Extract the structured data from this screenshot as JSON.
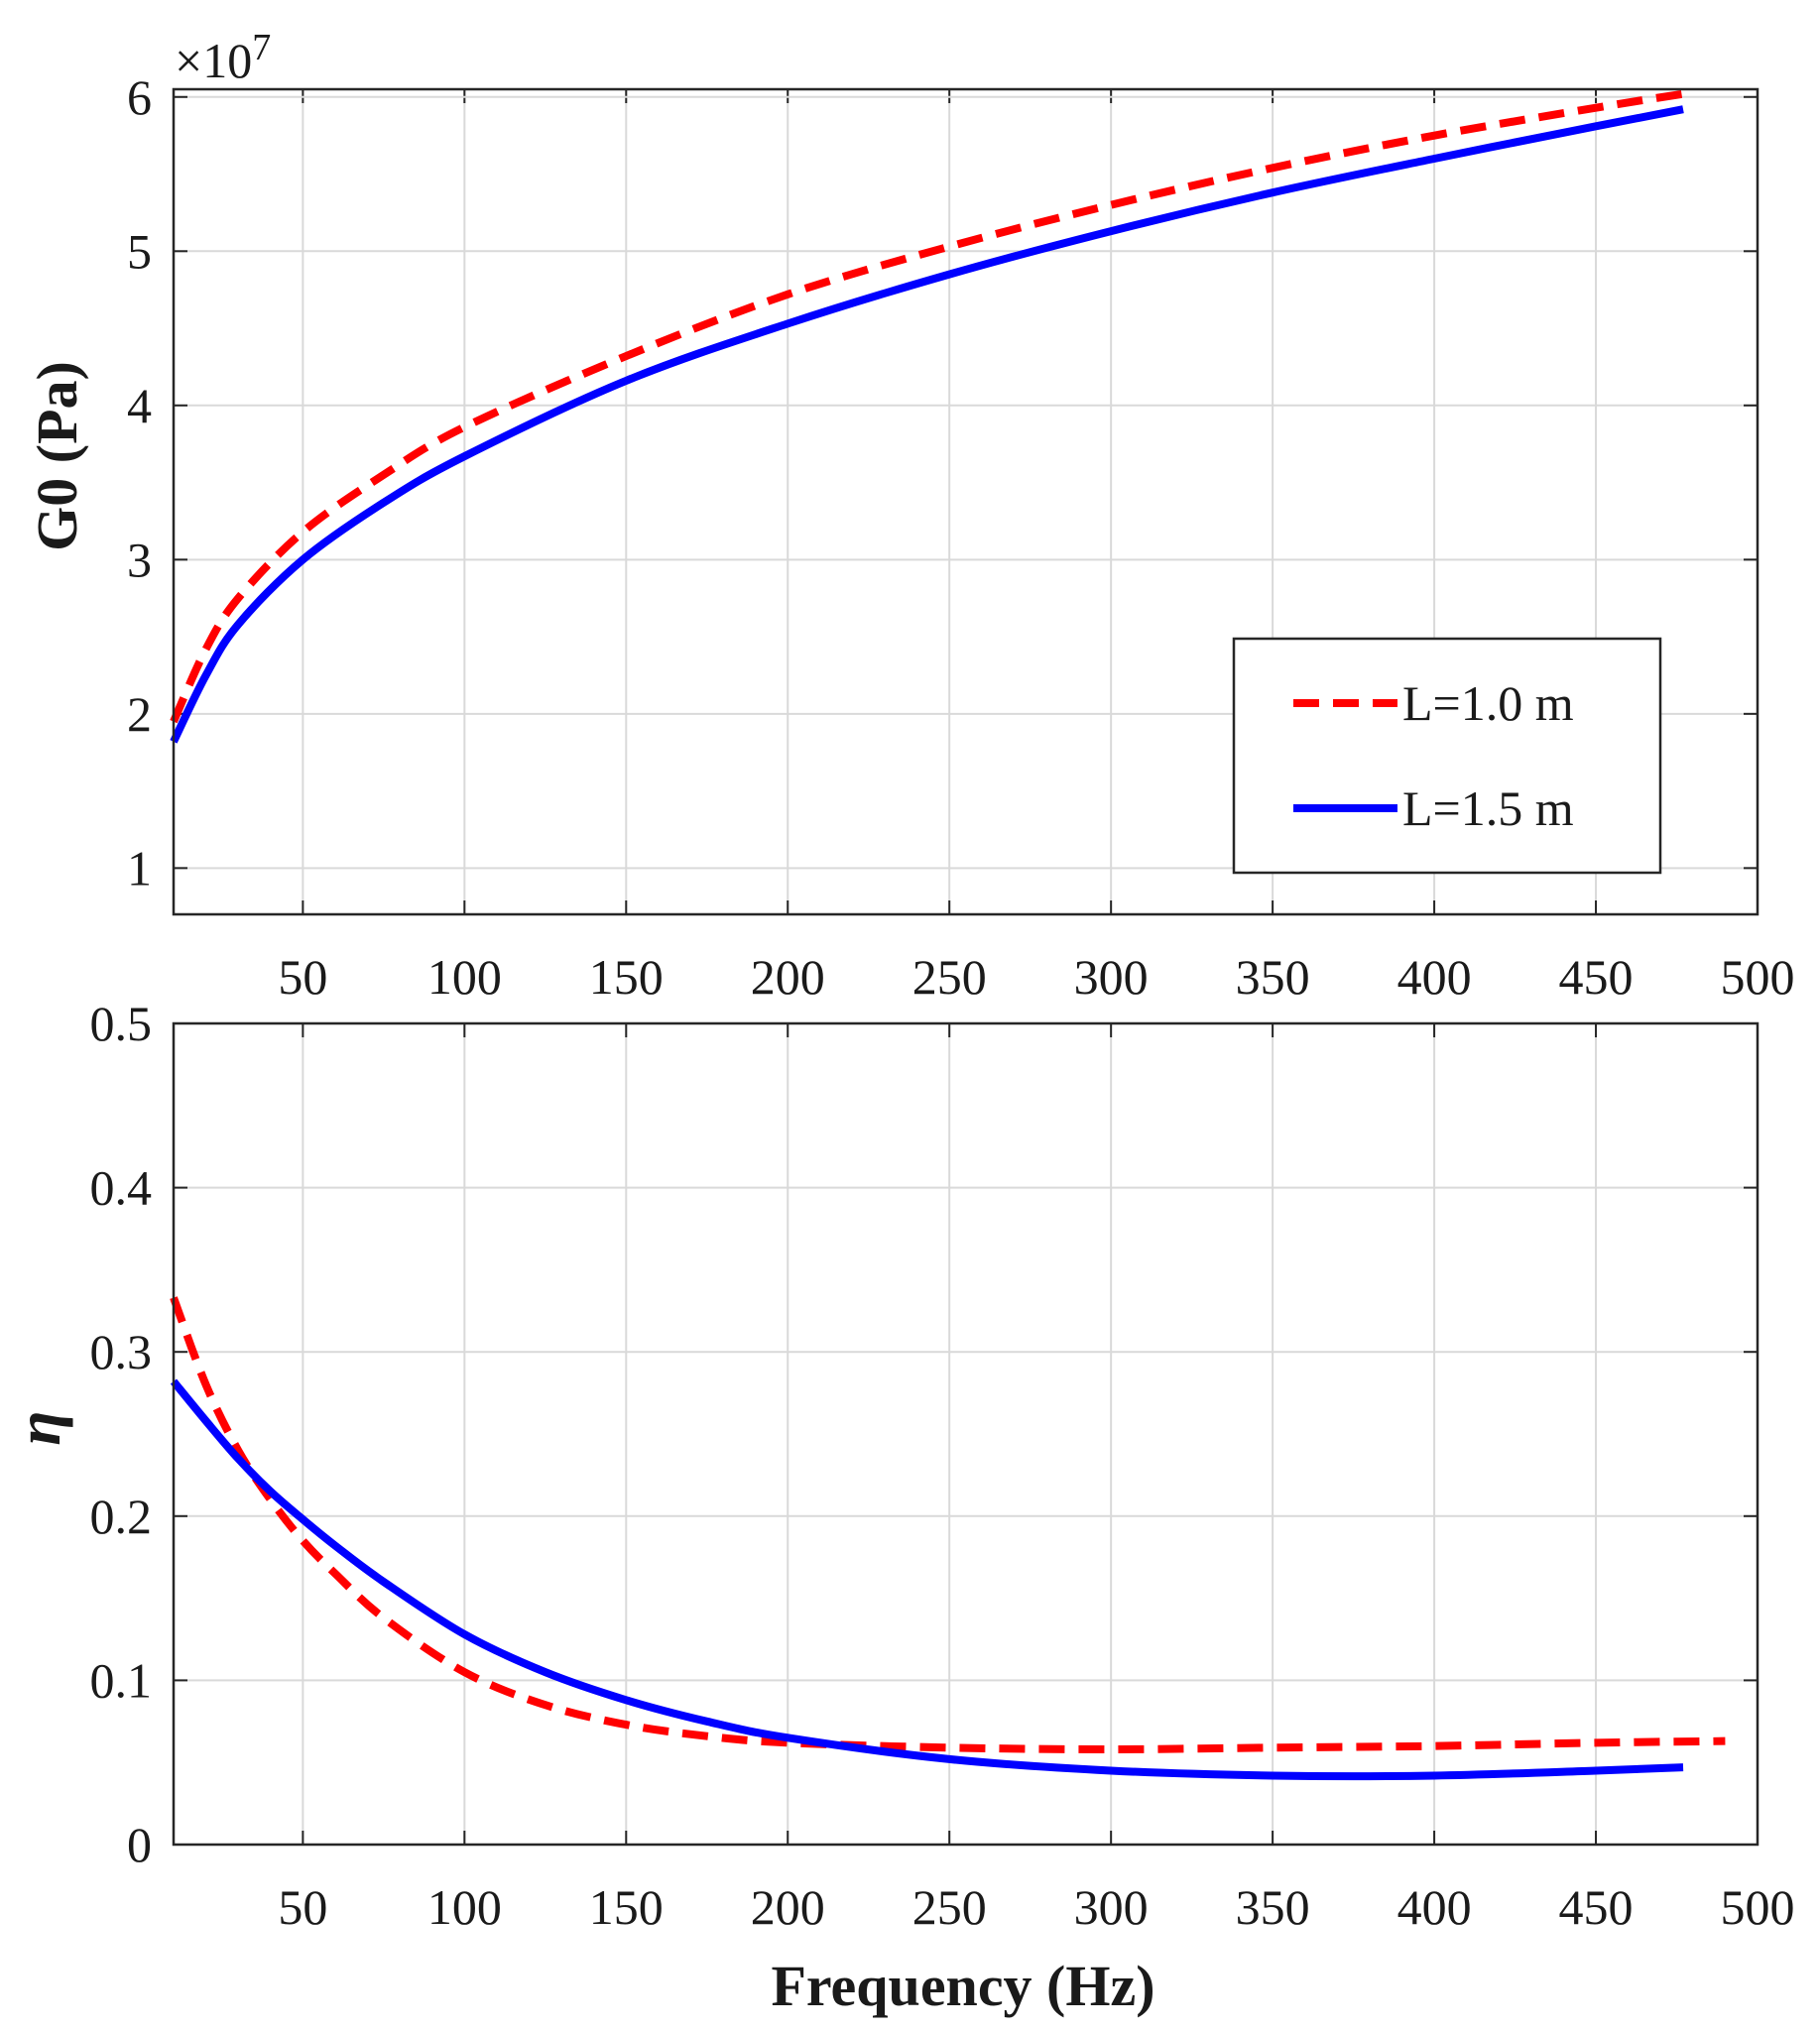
{
  "chart_data": [
    {
      "type": "line",
      "ylabel": "G0 (Pa)",
      "xlabel": "",
      "exponent_base": "×10",
      "exponent_power": "7",
      "xlim": [
        10,
        500
      ],
      "ylim": [
        0.7,
        6.05
      ],
      "xticks": [
        "50",
        "100",
        "150",
        "200",
        "250",
        "300",
        "350",
        "400",
        "450",
        "500"
      ],
      "yticks": [
        "1",
        "2",
        "3",
        "4",
        "5",
        "6"
      ],
      "grid": true,
      "legend": {
        "position": "bottom-right",
        "entries": [
          "L=1.0 m",
          "L=1.5 m"
        ]
      },
      "series": [
        {
          "name": "L=1.0 m",
          "style": "dashed",
          "color": "#ff0000",
          "x": [
            10,
            20,
            30,
            50,
            75,
            100,
            150,
            200,
            250,
            300,
            350,
            400,
            450,
            477
          ],
          "y": [
            1.95,
            2.42,
            2.75,
            3.18,
            3.55,
            3.86,
            4.32,
            4.72,
            5.03,
            5.3,
            5.54,
            5.75,
            5.93,
            6.02
          ]
        },
        {
          "name": "L=1.5 m",
          "style": "solid",
          "color": "#0000ff",
          "x": [
            10,
            20,
            30,
            50,
            75,
            100,
            150,
            200,
            250,
            300,
            350,
            400,
            450,
            477
          ],
          "y": [
            1.82,
            2.25,
            2.58,
            3.0,
            3.37,
            3.67,
            4.16,
            4.53,
            4.85,
            5.13,
            5.38,
            5.6,
            5.81,
            5.92
          ]
        }
      ]
    },
    {
      "type": "line",
      "ylabel": "η",
      "xlabel": "Frequency (Hz)",
      "xlim": [
        10,
        500
      ],
      "ylim": [
        0,
        0.5
      ],
      "xticks": [
        "50",
        "100",
        "150",
        "200",
        "250",
        "300",
        "350",
        "400",
        "450",
        "500"
      ],
      "yticks": [
        "0",
        "0.1",
        "0.2",
        "0.3",
        "0.4",
        "0.5"
      ],
      "grid": true,
      "series": [
        {
          "name": "L=1.0 m",
          "style": "dashed",
          "color": "#ff0000",
          "x": [
            10,
            20,
            30,
            40,
            50,
            60,
            75,
            100,
            125,
            150,
            175,
            200,
            250,
            300,
            350,
            400,
            450,
            490
          ],
          "y": [
            0.333,
            0.28,
            0.24,
            0.21,
            0.185,
            0.165,
            0.138,
            0.105,
            0.085,
            0.073,
            0.066,
            0.062,
            0.059,
            0.058,
            0.059,
            0.06,
            0.062,
            0.063
          ]
        },
        {
          "name": "L=1.5 m",
          "style": "solid",
          "color": "#0000ff",
          "x": [
            10,
            20,
            30,
            40,
            50,
            60,
            75,
            100,
            125,
            150,
            175,
            200,
            250,
            300,
            350,
            400,
            450,
            477
          ],
          "y": [
            0.282,
            0.258,
            0.235,
            0.215,
            0.198,
            0.182,
            0.16,
            0.128,
            0.105,
            0.088,
            0.075,
            0.065,
            0.052,
            0.045,
            0.042,
            0.042,
            0.045,
            0.047
          ]
        }
      ]
    }
  ]
}
